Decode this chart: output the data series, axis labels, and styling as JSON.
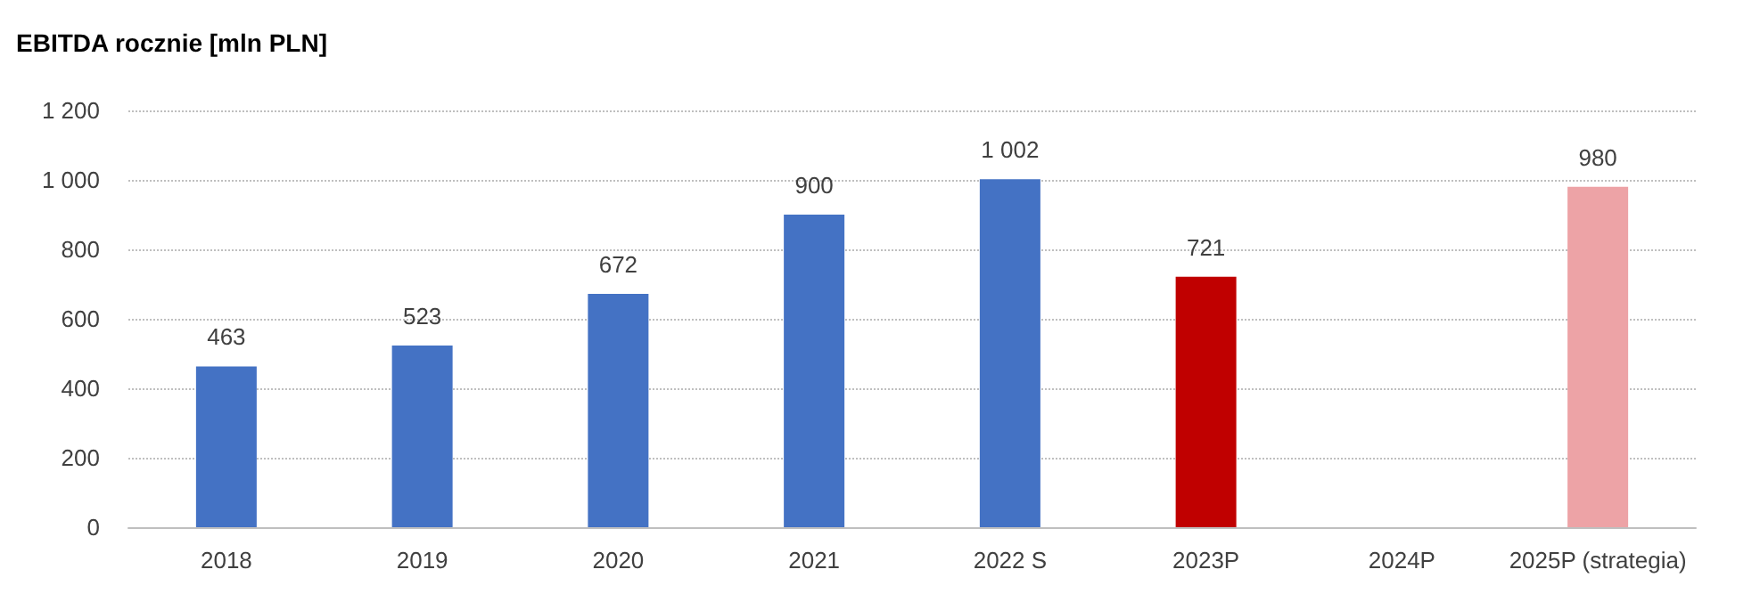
{
  "chart_data": {
    "type": "bar",
    "title": "EBITDA rocznie [mln PLN]",
    "categories": [
      "2018",
      "2019",
      "2020",
      "2021",
      "2022 S",
      "2023P",
      "2024P",
      "2025P (strategia)"
    ],
    "values": [
      463,
      523,
      672,
      900,
      1002,
      721,
      null,
      980
    ],
    "value_labels": [
      "463",
      "523",
      "672",
      "900",
      "1 002",
      "721",
      null,
      "980"
    ],
    "colors": [
      "#4472c4",
      "#4472c4",
      "#4472c4",
      "#4472c4",
      "#4472c4",
      "#c00000",
      "#4472c4",
      "#eda3a6"
    ],
    "ylim": [
      0,
      1200
    ],
    "yticks": [
      0,
      200,
      400,
      600,
      800,
      {
        "value": 1000,
        "label": "1 000"
      },
      {
        "value": 1200,
        "label": "1 200"
      }
    ],
    "grid": "y"
  }
}
